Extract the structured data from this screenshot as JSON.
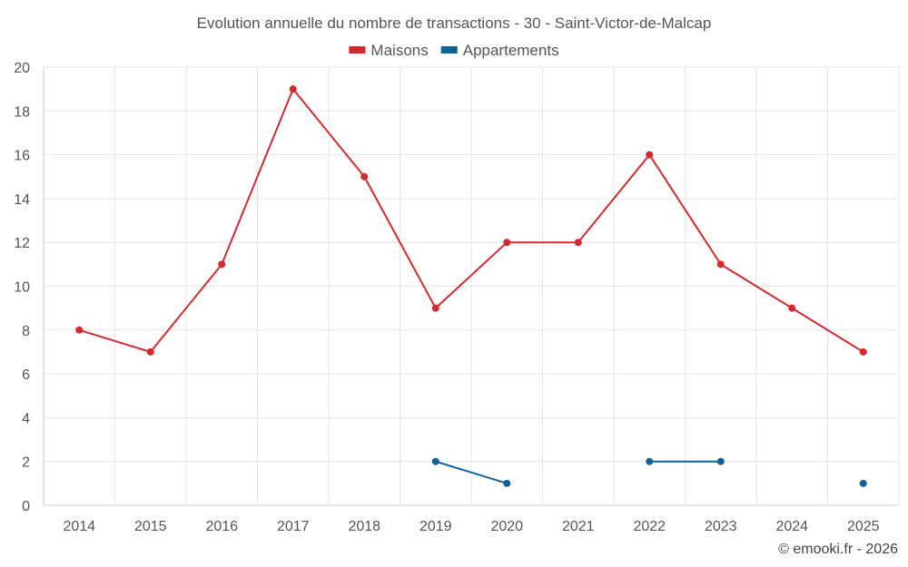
{
  "chart_data": {
    "type": "line",
    "title": "Evolution annuelle du nombre de transactions - 30 - Saint-Victor-de-Malcap",
    "categories": [
      "2014",
      "2015",
      "2016",
      "2017",
      "2018",
      "2019",
      "2020",
      "2021",
      "2022",
      "2023",
      "2024",
      "2025"
    ],
    "ylim": [
      0,
      20
    ],
    "yticks": [
      0,
      2,
      4,
      6,
      8,
      10,
      12,
      14,
      16,
      18,
      20
    ],
    "grid": true,
    "legend_position": "top-center",
    "series": [
      {
        "name": "Maisons",
        "color": "#d42a2f",
        "values": [
          8,
          7,
          11,
          19,
          15,
          9,
          12,
          12,
          16,
          11,
          9,
          7
        ]
      },
      {
        "name": "Appartements",
        "color": "#0f6399",
        "values": [
          null,
          null,
          null,
          null,
          null,
          2,
          1,
          null,
          2,
          2,
          null,
          1
        ]
      }
    ],
    "credit": "© emooki.fr - 2026"
  }
}
